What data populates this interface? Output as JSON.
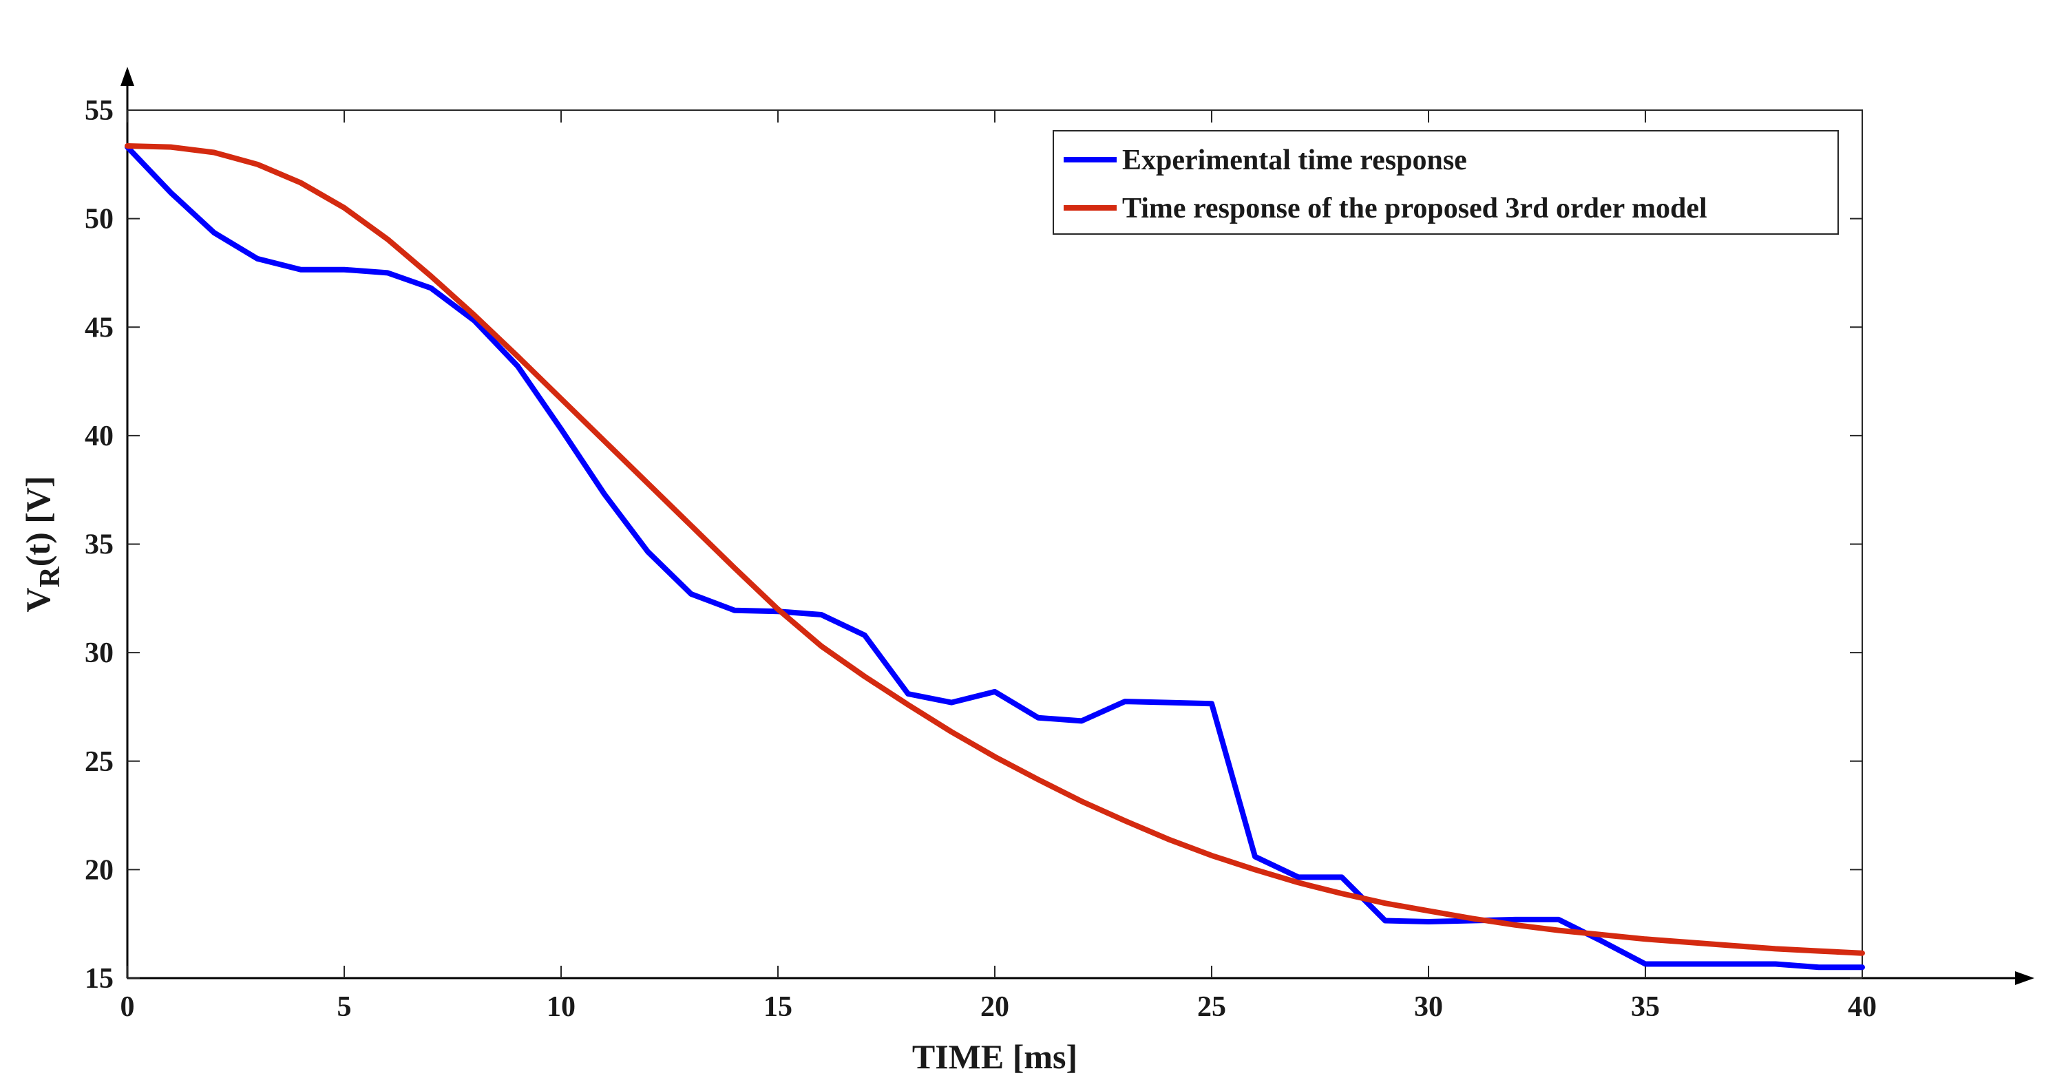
{
  "chart_data": {
    "type": "line",
    "title": "",
    "xlabel": "TIME [ms]",
    "ylabel_main": "V",
    "ylabel_sub": "R",
    "ylabel_rest": "(t) [V]",
    "xlim": [
      0,
      40
    ],
    "ylim": [
      15,
      57
    ],
    "xticks": [
      0,
      5,
      10,
      15,
      20,
      25,
      30,
      35,
      40
    ],
    "yticks": [
      15,
      20,
      25,
      30,
      35,
      40,
      45,
      50,
      55
    ],
    "grid": false,
    "legend_position": "top-right",
    "series": [
      {
        "name": "Experimental time response",
        "color": "#0000ff",
        "x": [
          0,
          1,
          2,
          3,
          4,
          5,
          6,
          7,
          8,
          9,
          10,
          11,
          12,
          13,
          14,
          15,
          16,
          17,
          18,
          19,
          20,
          21,
          22,
          23,
          24,
          25,
          26,
          27,
          28,
          29,
          30,
          31,
          32,
          33,
          34,
          35,
          36,
          37,
          38,
          39,
          40
        ],
        "y": [
          53.3,
          51.2,
          49.35,
          48.15,
          47.65,
          47.65,
          47.5,
          46.8,
          45.3,
          43.2,
          40.3,
          37.3,
          34.65,
          32.7,
          31.95,
          31.9,
          31.75,
          30.8,
          28.1,
          27.7,
          28.2,
          27.0,
          26.85,
          27.75,
          27.7,
          27.65,
          20.6,
          19.65,
          19.65,
          17.65,
          17.6,
          17.65,
          17.7,
          17.7,
          16.7,
          15.65,
          15.65,
          15.65,
          15.65,
          15.5,
          15.5
        ]
      },
      {
        "name": "Time response of the proposed 3rd order model",
        "color": "#d42a10",
        "x": [
          0,
          1,
          2,
          3,
          4,
          5,
          6,
          7,
          8,
          9,
          10,
          11,
          12,
          13,
          14,
          15,
          16,
          17,
          18,
          19,
          20,
          21,
          22,
          23,
          24,
          25,
          26,
          27,
          28,
          29,
          30,
          31,
          32,
          33,
          34,
          35,
          36,
          37,
          38,
          39,
          40
        ],
        "y": [
          53.35,
          53.3,
          53.05,
          52.5,
          51.65,
          50.5,
          49.05,
          47.35,
          45.55,
          43.65,
          41.7,
          39.75,
          37.8,
          35.85,
          33.9,
          32.0,
          30.3,
          28.9,
          27.6,
          26.35,
          25.2,
          24.15,
          23.15,
          22.25,
          21.4,
          20.65,
          20.0,
          19.4,
          18.9,
          18.45,
          18.1,
          17.75,
          17.45,
          17.2,
          17.0,
          16.8,
          16.65,
          16.5,
          16.35,
          16.25,
          16.15
        ]
      }
    ]
  }
}
